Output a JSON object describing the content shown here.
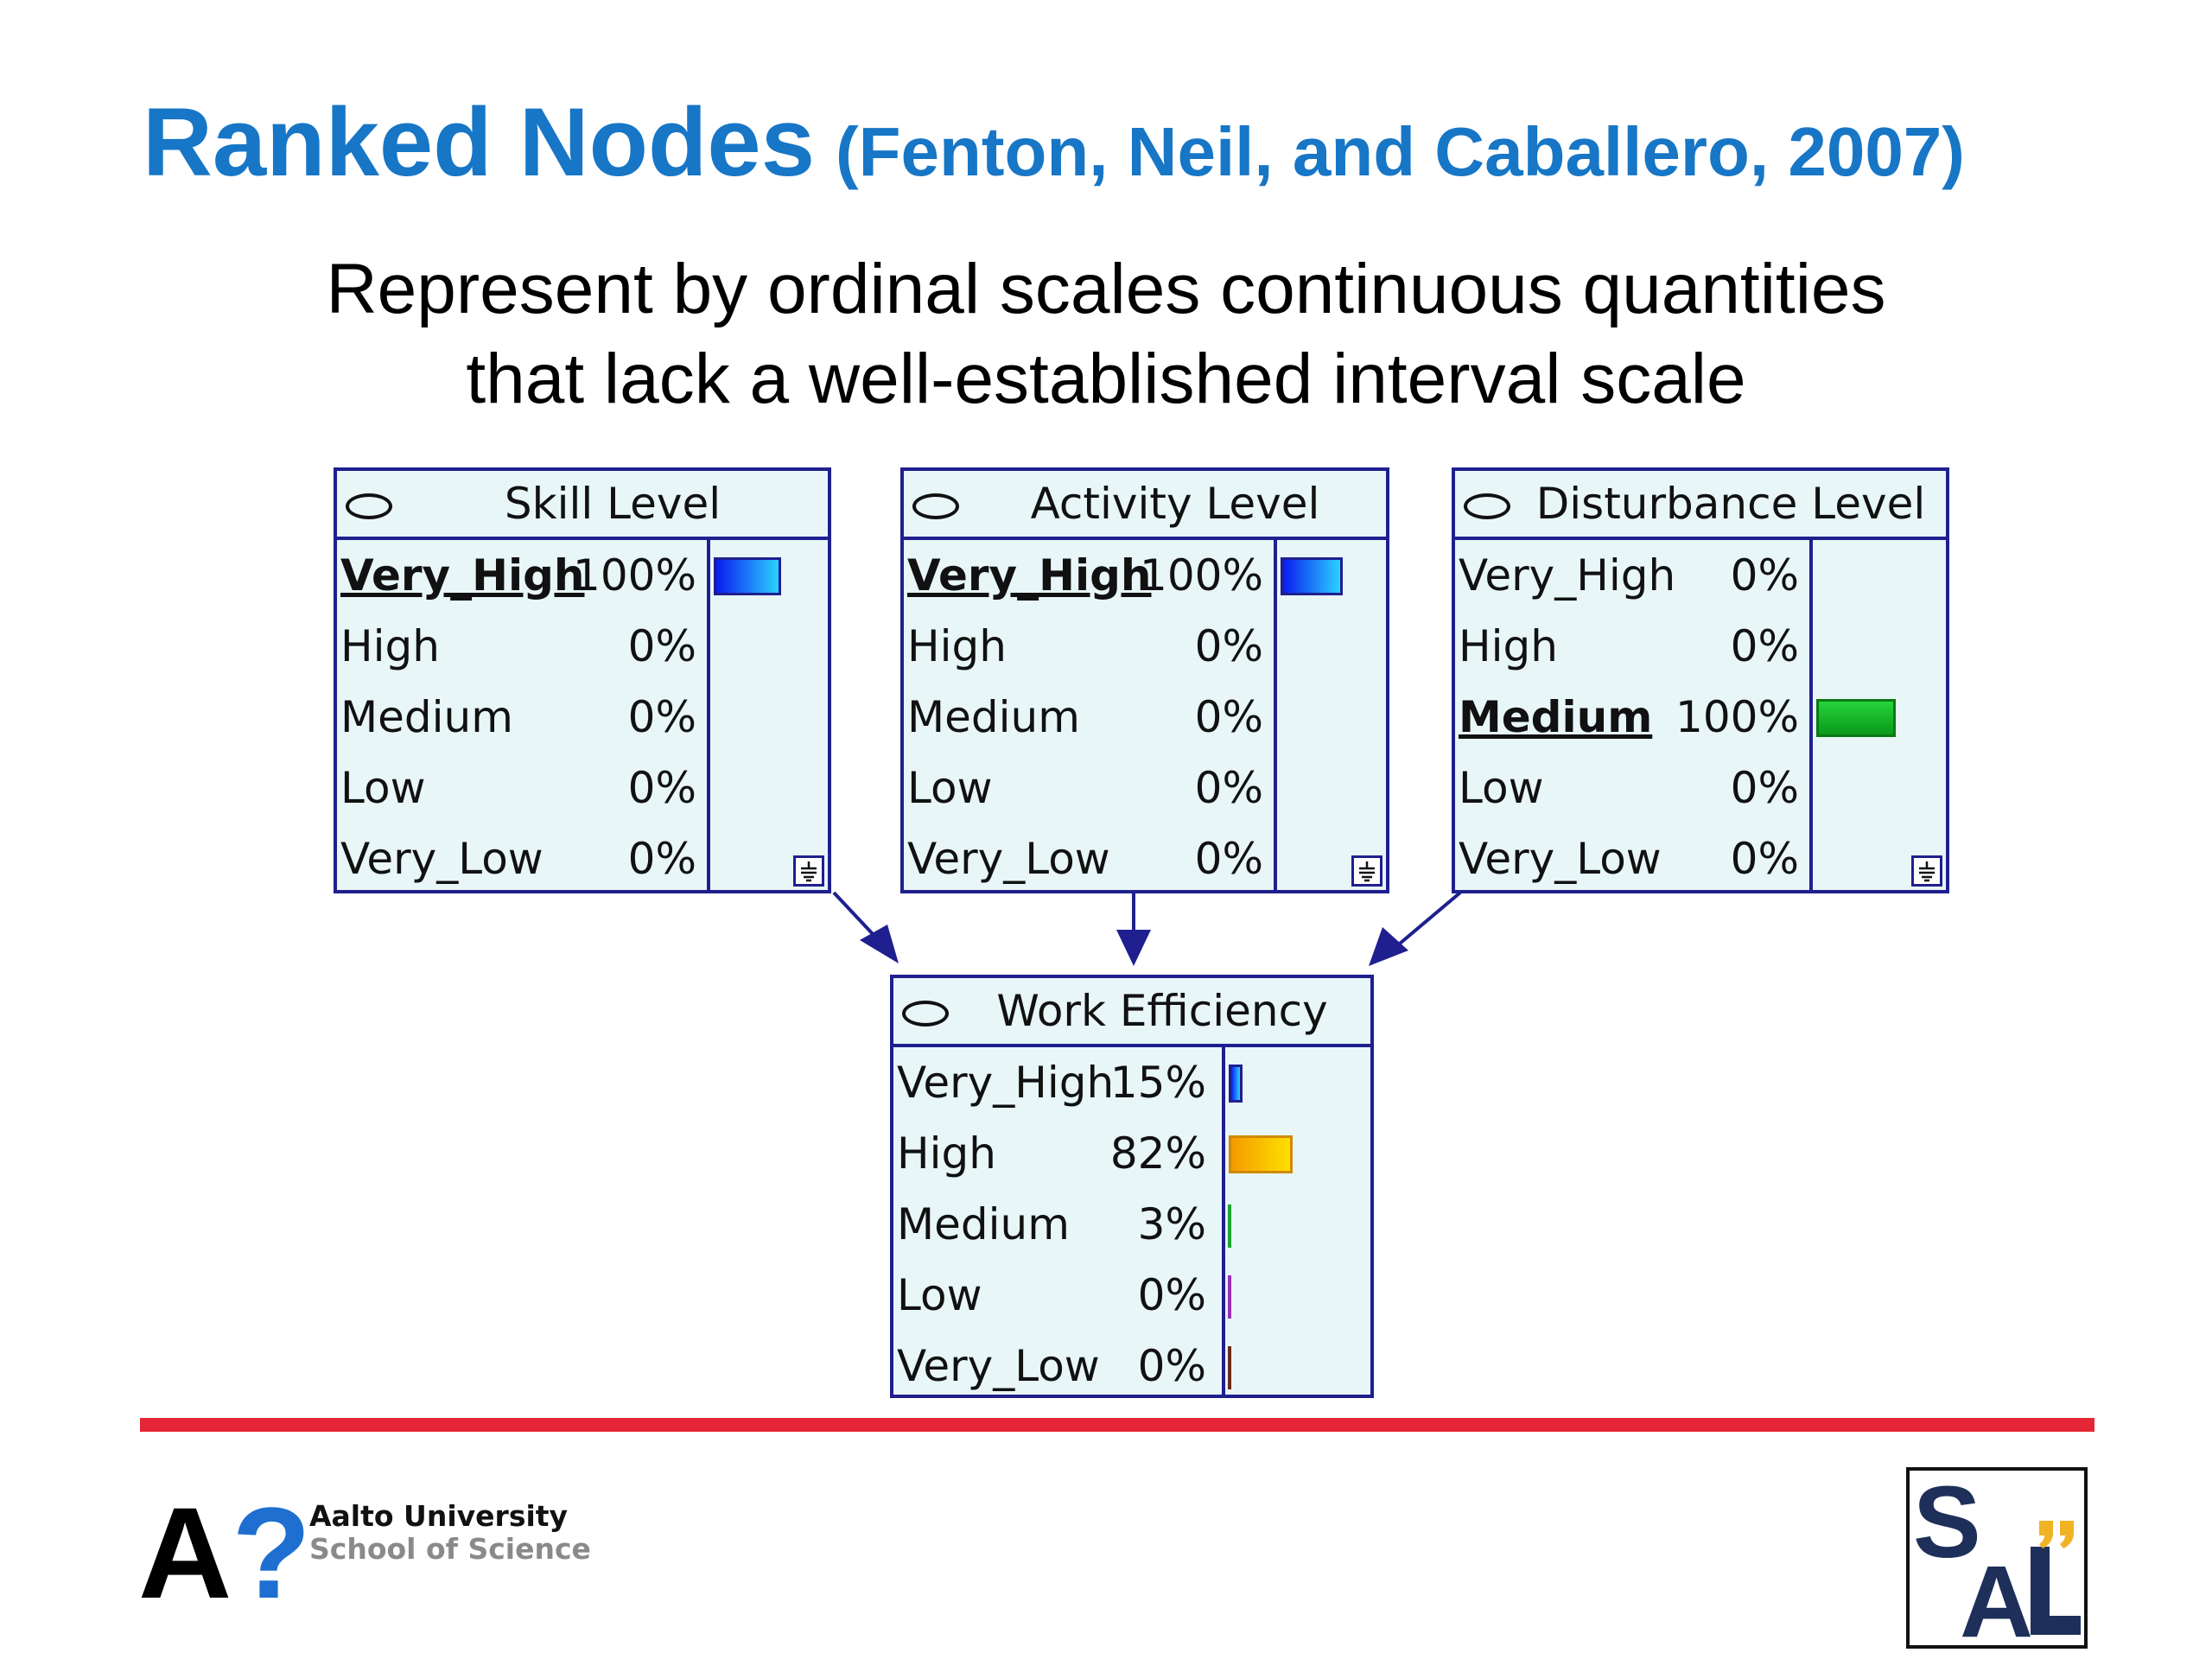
{
  "title": {
    "main": "Ranked Nodes",
    "citation": "(Fenton, Neil, and Caballero, 2007)"
  },
  "subtitle": {
    "line1": "Represent by ordinal scales continuous quantities",
    "line2": "that lack a well-established interval scale"
  },
  "nodes": {
    "skill": {
      "title": "Skill Level",
      "rows": [
        {
          "state": "Very_High",
          "pct": "100%",
          "value": 1.0,
          "selected": true
        },
        {
          "state": "High",
          "pct": "0%",
          "value": 0
        },
        {
          "state": "Medium",
          "pct": "0%",
          "value": 0
        },
        {
          "state": "Low",
          "pct": "0%",
          "value": 0
        },
        {
          "state": "Very_Low",
          "pct": "0%",
          "value": 0
        }
      ]
    },
    "activity": {
      "title": "Activity Level",
      "rows": [
        {
          "state": "Very_High",
          "pct": "100%",
          "value": 1.0,
          "selected": true
        },
        {
          "state": "High",
          "pct": "0%",
          "value": 0
        },
        {
          "state": "Medium",
          "pct": "0%",
          "value": 0
        },
        {
          "state": "Low",
          "pct": "0%",
          "value": 0
        },
        {
          "state": "Very_Low",
          "pct": "0%",
          "value": 0
        }
      ]
    },
    "disturbance": {
      "title": "Disturbance Level",
      "rows": [
        {
          "state": "Very_High",
          "pct": "0%",
          "value": 0
        },
        {
          "state": "High",
          "pct": "0%",
          "value": 0
        },
        {
          "state": "Medium",
          "pct": "100%",
          "value": 1.0,
          "selected": true
        },
        {
          "state": "Low",
          "pct": "0%",
          "value": 0
        },
        {
          "state": "Very_Low",
          "pct": "0%",
          "value": 0
        }
      ]
    },
    "work": {
      "title": "Work Efficiency",
      "rows": [
        {
          "state": "Very_High",
          "pct": "15%",
          "value": 0.15
        },
        {
          "state": "High",
          "pct": "82%",
          "value": 0.82
        },
        {
          "state": "Medium",
          "pct": "3%",
          "value": 0.03
        },
        {
          "state": "Low",
          "pct": "0%",
          "value": 0
        },
        {
          "state": "Very_Low",
          "pct": "0%",
          "value": 0
        }
      ]
    }
  },
  "colors": {
    "blue_bar": "#0a1cf0",
    "green_bar": "#0a9a1a",
    "orange_bar": "#f39a00",
    "node_bg": "#e8f6f8",
    "border": "#1f1f8f",
    "title": "#1776c6",
    "rule": "#e52637"
  },
  "footer": {
    "logo_letter": "A",
    "logo_mark": "?",
    "university": "Aalto University",
    "school": "School of Science",
    "sal_logo_text": "SAL"
  }
}
